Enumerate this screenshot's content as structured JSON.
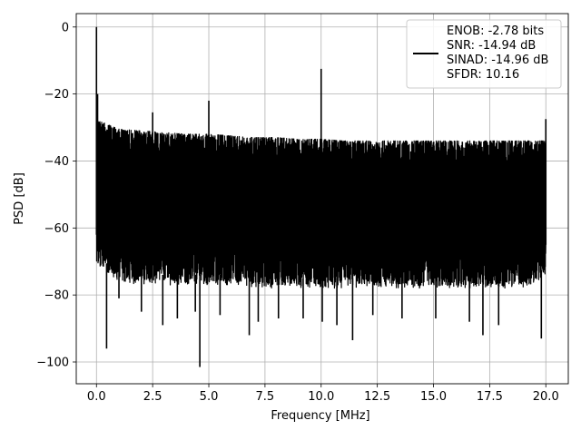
{
  "chart_data": {
    "type": "line",
    "title": "",
    "xlabel": "Frequency [MHz]",
    "ylabel": "PSD [dB]",
    "xlim": [
      -0.9,
      21.0
    ],
    "ylim": [
      -106.5,
      4.0
    ],
    "grid": true,
    "legend_placement": "top-right",
    "x_ticks": [
      0.0,
      2.5,
      5.0,
      7.5,
      10.0,
      12.5,
      15.0,
      17.5,
      20.0
    ],
    "x_tick_labels": [
      "0.0",
      "2.5",
      "5.0",
      "7.5",
      "10.0",
      "12.5",
      "15.0",
      "17.5",
      "20.0"
    ],
    "y_ticks": [
      0,
      -20,
      -40,
      -60,
      -80,
      -100
    ],
    "y_tick_labels": [
      "0",
      "−20",
      "−40",
      "−60",
      "−80",
      "−100"
    ],
    "series_color": "#000000",
    "legend_lines": [
      "ENOB: -2.78 bits",
      "SNR: -14.94 dB",
      "SINAD: -14.96 dB",
      "SFDR: 10.16"
    ],
    "noise_band": {
      "x": [
        0.1,
        1.0,
        2.0,
        3.0,
        4.0,
        5.0,
        6.0,
        7.0,
        8.0,
        9.0,
        10.0,
        11.0,
        12.0,
        13.0,
        14.0,
        15.0,
        16.0,
        17.0,
        18.0,
        19.0,
        20.0
      ],
      "upper": [
        -28,
        -30.5,
        -31,
        -31.5,
        -32,
        -32,
        -32.5,
        -33,
        -33,
        -33.5,
        -33.5,
        -34,
        -34,
        -34,
        -34,
        -34,
        -34,
        -34,
        -34,
        -34,
        -34
      ],
      "lower": [
        -72,
        -76,
        -77,
        -77,
        -77,
        -77,
        -77,
        -78,
        -78,
        -78,
        -78,
        -78,
        -78,
        -78,
        -78,
        -78,
        -78,
        -78,
        -78,
        -78,
        -75
      ]
    },
    "peaks": [
      {
        "x": 0.0,
        "y": 0
      },
      {
        "x": 0.05,
        "y": -20
      },
      {
        "x": 2.5,
        "y": -25.5
      },
      {
        "x": 5.0,
        "y": -22
      },
      {
        "x": 10.0,
        "y": -12.5
      },
      {
        "x": 20.0,
        "y": -27.5
      }
    ],
    "dips": [
      {
        "x": 0.45,
        "y": -96
      },
      {
        "x": 1.0,
        "y": -81
      },
      {
        "x": 2.0,
        "y": -85
      },
      {
        "x": 2.95,
        "y": -89
      },
      {
        "x": 3.6,
        "y": -87
      },
      {
        "x": 4.4,
        "y": -85
      },
      {
        "x": 4.6,
        "y": -101.5
      },
      {
        "x": 5.5,
        "y": -86
      },
      {
        "x": 6.8,
        "y": -92
      },
      {
        "x": 7.2,
        "y": -88
      },
      {
        "x": 8.1,
        "y": -87
      },
      {
        "x": 9.2,
        "y": -87
      },
      {
        "x": 10.05,
        "y": -88
      },
      {
        "x": 10.7,
        "y": -89
      },
      {
        "x": 11.4,
        "y": -93.5
      },
      {
        "x": 12.3,
        "y": -86
      },
      {
        "x": 13.6,
        "y": -87
      },
      {
        "x": 15.1,
        "y": -87
      },
      {
        "x": 16.6,
        "y": -88
      },
      {
        "x": 17.2,
        "y": -92
      },
      {
        "x": 17.9,
        "y": -89
      },
      {
        "x": 19.8,
        "y": -93
      }
    ]
  }
}
